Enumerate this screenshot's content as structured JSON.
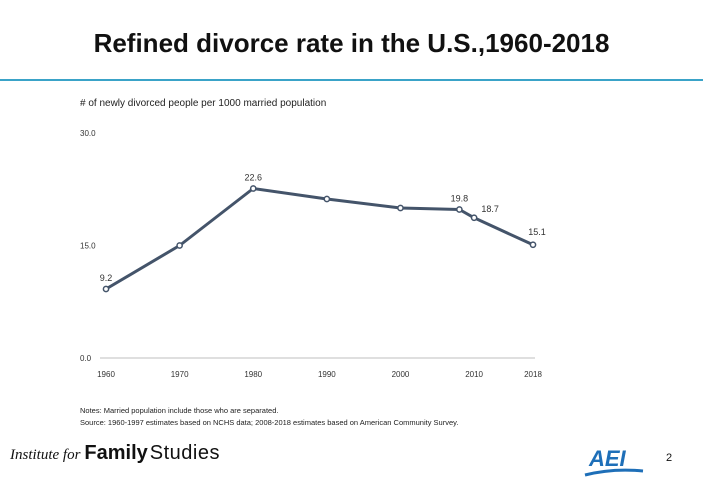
{
  "slide": {
    "title": "Refined divorce rate in the U.S.,1960-2018",
    "rule_color": "#3aa3c8",
    "notes_line1": "Notes: Married population include those who are separated.",
    "notes_line2": "Source: 1960-1997 estimates based on NCHS data; 2008-2018 estimates based on American Community Survey.",
    "footer_italic": "Institute for",
    "footer_family": "Family",
    "footer_studies": "Studies",
    "logo_text": "AEI",
    "logo_color": "#1e6fb8",
    "page_number": "2"
  },
  "chart_data": {
    "type": "line",
    "ylabel": "# of newly divorced people per 1000 married population",
    "xlabel": "",
    "x": [
      1960,
      1970,
      1980,
      1990,
      2000,
      2008,
      2010,
      2018
    ],
    "series": [
      {
        "values": [
          9.2,
          15.0,
          22.6,
          21.2,
          20.0,
          19.8,
          18.7,
          15.1
        ],
        "data_labels": [
          "9.2",
          "",
          "22.6",
          "",
          "",
          "19.8",
          "18.7",
          "15.1"
        ]
      }
    ],
    "xtick_labels": [
      "1960",
      "1970",
      "1980",
      "1990",
      "2000",
      "2010",
      "2018"
    ],
    "xtick_values": [
      1960,
      1970,
      1980,
      1990,
      2000,
      2010,
      2018
    ],
    "ytick_labels": [
      "0.0",
      "15.0",
      "30.0"
    ],
    "ytick_values": [
      0,
      15,
      30
    ],
    "ylim": [
      0,
      30
    ],
    "xlim": [
      1960,
      2018
    ],
    "grid": false,
    "line_color": "#44546a",
    "marker_fill": "#ffffff"
  }
}
